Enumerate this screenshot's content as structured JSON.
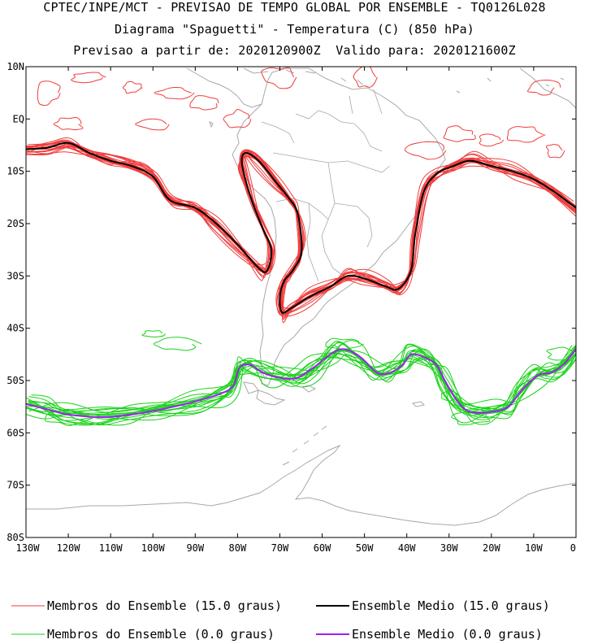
{
  "titles": {
    "line1": "CPTEC/INPE/MCT - PREVISAO DE TEMPO GLOBAL POR ENSEMBLE - TQ0126L028",
    "line2": "Diagrama \"Spaguetti\" - Temperatura (C) (850 hPa)",
    "line3": "Previsao a partir de: 2020120900Z  Valido para: 2020121600Z"
  },
  "axes": {
    "lat_labels": [
      "10N",
      "EQ",
      "10S",
      "20S",
      "30S",
      "40S",
      "50S",
      "60S",
      "70S",
      "80S"
    ],
    "lon_labels": [
      "130W",
      "120W",
      "110W",
      "100W",
      "90W",
      "80W",
      "70W",
      "60W",
      "50W",
      "40W",
      "30W",
      "20W",
      "10W",
      "0"
    ]
  },
  "legend": {
    "members_15": "Membros do Ensemble (15.0 graus)",
    "mean_15": "Ensemble Medio (15.0 graus)",
    "members_0": "Membros do Ensemble (0.0 graus)",
    "mean_0": "Ensemble Medio (0.0 graus)"
  },
  "colors": {
    "members_15": "#f03c3c",
    "mean_15": "#000000",
    "members_0": "#19d219",
    "mean_0": "#a020f0",
    "coast": "#a8a8a8"
  },
  "contour_15": {
    "label": "15.0",
    "mean": [
      [
        -130,
        -5.8
      ],
      [
        -125,
        -5.5
      ],
      [
        -120,
        -4.6
      ],
      [
        -115,
        -6.5
      ],
      [
        -110,
        -8
      ],
      [
        -105,
        -9
      ],
      [
        -100,
        -11
      ],
      [
        -96,
        -15.5
      ],
      [
        -90,
        -17
      ],
      [
        -85,
        -20
      ],
      [
        -80,
        -24
      ],
      [
        -75,
        -28.5
      ],
      [
        -73,
        -29
      ],
      [
        -72,
        -25
      ],
      [
        -74,
        -21
      ],
      [
        -76,
        -17
      ],
      [
        -78,
        -12
      ],
      [
        -79,
        -8
      ],
      [
        -78,
        -6.5
      ],
      [
        -75,
        -8
      ],
      [
        -71,
        -12
      ],
      [
        -68,
        -15
      ],
      [
        -66,
        -17.5
      ],
      [
        -65,
        -22
      ],
      [
        -65,
        -26
      ],
      [
        -67,
        -29
      ],
      [
        -69,
        -31
      ],
      [
        -70,
        -34
      ],
      [
        -69.5,
        -37
      ],
      [
        -67,
        -36
      ],
      [
        -63,
        -34
      ],
      [
        -58,
        -32
      ],
      [
        -54,
        -30
      ],
      [
        -50,
        -30.5
      ],
      [
        -45,
        -32
      ],
      [
        -42,
        -32.5
      ],
      [
        -39,
        -29
      ],
      [
        -38,
        -22
      ],
      [
        -36,
        -14
      ],
      [
        -33,
        -10.5
      ],
      [
        -29,
        -9
      ],
      [
        -25,
        -8
      ],
      [
        -20,
        -9
      ],
      [
        -15,
        -10
      ],
      [
        -10,
        -11.5
      ],
      [
        -5,
        -14
      ],
      [
        0,
        -17
      ]
    ],
    "members": 16
  },
  "contour_0": {
    "label": "0.0",
    "mean": [
      [
        -130,
        -54.5
      ],
      [
        -125,
        -55.5
      ],
      [
        -120,
        -56.5
      ],
      [
        -112,
        -57
      ],
      [
        -105,
        -56.5
      ],
      [
        -98,
        -55.5
      ],
      [
        -90,
        -54
      ],
      [
        -84,
        -52.5
      ],
      [
        -81,
        -51
      ],
      [
        -79.5,
        -47.5
      ],
      [
        -77,
        -47
      ],
      [
        -74,
        -48.5
      ],
      [
        -70,
        -49.5
      ],
      [
        -66,
        -49.5
      ],
      [
        -62,
        -47.5
      ],
      [
        -58,
        -45
      ],
      [
        -55,
        -44
      ],
      [
        -51,
        -45.5
      ],
      [
        -47,
        -48.5
      ],
      [
        -44,
        -48.5
      ],
      [
        -41,
        -47
      ],
      [
        -39,
        -45
      ],
      [
        -36,
        -45.5
      ],
      [
        -33,
        -47
      ],
      [
        -31,
        -50
      ],
      [
        -28,
        -54
      ],
      [
        -25,
        -56
      ],
      [
        -20,
        -56
      ],
      [
        -16,
        -55
      ],
      [
        -13,
        -52
      ],
      [
        -9,
        -49
      ],
      [
        -6,
        -48.5
      ],
      [
        -3,
        -47
      ],
      [
        0,
        -44
      ]
    ],
    "members": 16
  }
}
